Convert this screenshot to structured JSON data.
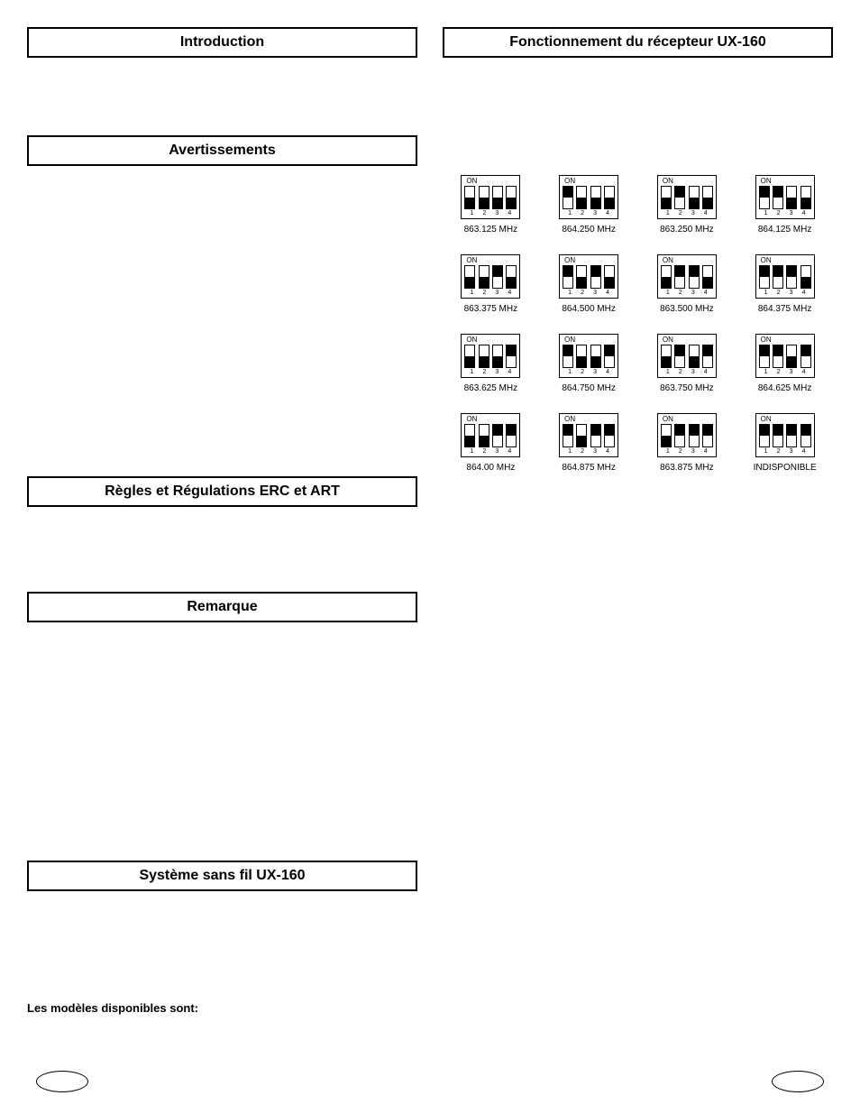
{
  "left": {
    "headers": {
      "introduction": "Introduction",
      "avertissements": "Avertissements",
      "regles": "Règles et Régulations ERC et ART",
      "remarque": "Remarque",
      "systeme": "Système sans fil UX-160"
    },
    "modeles_label": "Les modèles disponibles sont:"
  },
  "right": {
    "headers": {
      "fonctionnement": "Fonctionnement du récepteur UX-160"
    },
    "dip_on_label": "ON",
    "dip_numbers": [
      "1",
      "2",
      "3",
      "4"
    ],
    "dip": [
      {
        "label": "863.125 MHz",
        "sw": [
          0,
          0,
          0,
          0
        ]
      },
      {
        "label": "864.250 MHz",
        "sw": [
          1,
          0,
          0,
          0
        ]
      },
      {
        "label": "863.250 MHz",
        "sw": [
          0,
          1,
          0,
          0
        ]
      },
      {
        "label": "864.125 MHz",
        "sw": [
          1,
          1,
          0,
          0
        ]
      },
      {
        "label": "863.375 MHz",
        "sw": [
          0,
          0,
          1,
          0
        ]
      },
      {
        "label": "864.500 MHz",
        "sw": [
          1,
          0,
          1,
          0
        ]
      },
      {
        "label": "863.500 MHz",
        "sw": [
          0,
          1,
          1,
          0
        ]
      },
      {
        "label": "864.375 MHz",
        "sw": [
          1,
          1,
          1,
          0
        ]
      },
      {
        "label": "863.625 MHz",
        "sw": [
          0,
          0,
          0,
          1
        ]
      },
      {
        "label": "864.750 MHz",
        "sw": [
          1,
          0,
          0,
          1
        ]
      },
      {
        "label": "863.750 MHz",
        "sw": [
          0,
          1,
          0,
          1
        ]
      },
      {
        "label": "864.625 MHz",
        "sw": [
          1,
          1,
          0,
          1
        ]
      },
      {
        "label": "864.00 MHz",
        "sw": [
          0,
          0,
          1,
          1
        ]
      },
      {
        "label": "864.875 MHz",
        "sw": [
          1,
          0,
          1,
          1
        ]
      },
      {
        "label": "863.875 MHz",
        "sw": [
          0,
          1,
          1,
          1
        ]
      },
      {
        "label": "INDISPONIBLE",
        "sw": [
          1,
          1,
          1,
          1
        ]
      }
    ]
  },
  "colors": {
    "text": "#000000",
    "background": "#ffffff",
    "border": "#000000"
  }
}
